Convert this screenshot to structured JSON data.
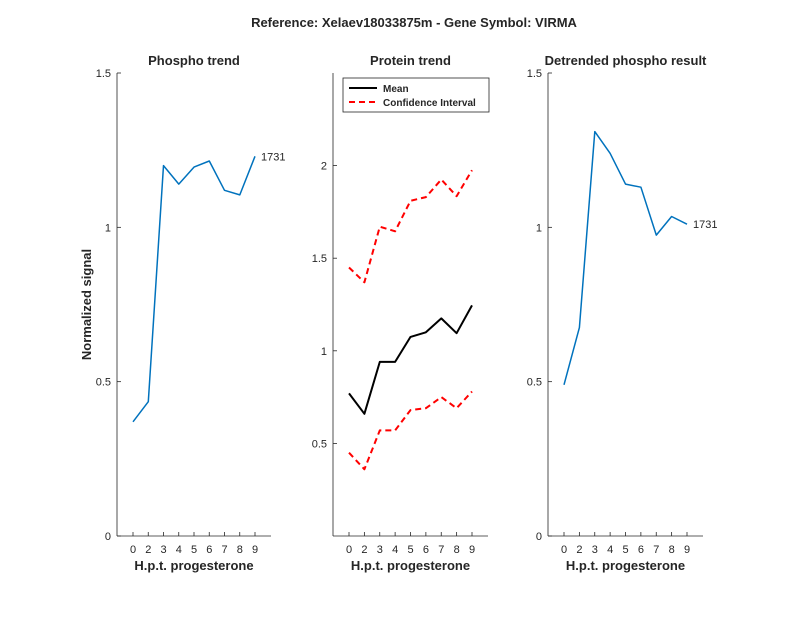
{
  "figure_title": "Reference:  Xelaev18033875m - Gene Symbol:  VIRMA",
  "colors": {
    "phospho": "#0072BD",
    "mean": "#000000",
    "ci": "#FF0000",
    "axis": "#262626"
  },
  "chart_data": [
    {
      "type": "line",
      "title": "Phospho trend",
      "xlabel": "H.p.t. progesterone",
      "ylabel": "Normalized signal",
      "categories": [
        "0",
        "2",
        "3",
        "4",
        "5",
        "6",
        "7",
        "8",
        "9"
      ],
      "ylim": [
        0,
        1.5
      ],
      "yticks": [
        "0",
        "0.5",
        "1",
        "1.5"
      ],
      "series": [
        {
          "values": [
            0.37,
            0.435,
            1.2,
            1.14,
            1.195,
            1.215,
            1.12,
            1.105,
            1.23
          ]
        }
      ],
      "end_label": "1731"
    },
    {
      "type": "line",
      "title": "Protein trend",
      "xlabel": "H.p.t. progesterone",
      "categories": [
        "0",
        "2",
        "3",
        "4",
        "5",
        "6",
        "7",
        "8",
        "9"
      ],
      "ylim": [
        0,
        2.5
      ],
      "yticks": [
        "0.5",
        "1",
        "1.5",
        "2"
      ],
      "legend": [
        "Mean",
        "Confidence Interval"
      ],
      "series": [
        {
          "name": "Mean",
          "values": [
            0.77,
            0.66,
            0.94,
            0.94,
            1.075,
            1.1,
            1.175,
            1.095,
            1.245
          ]
        },
        {
          "name": "Confidence Interval",
          "values": [
            1.45,
            1.37,
            1.67,
            1.645,
            1.81,
            1.83,
            1.925,
            1.835,
            1.975
          ]
        },
        {
          "name": "Confidence Interval",
          "values": [
            0.45,
            0.36,
            0.57,
            0.57,
            0.68,
            0.69,
            0.75,
            0.69,
            0.78
          ]
        }
      ]
    },
    {
      "type": "line",
      "title": "Detrended phospho result",
      "xlabel": "H.p.t. progesterone",
      "categories": [
        "0",
        "2",
        "3",
        "4",
        "5",
        "6",
        "7",
        "8",
        "9"
      ],
      "ylim": [
        0,
        1.5
      ],
      "yticks": [
        "0",
        "0.5",
        "1",
        "1.5"
      ],
      "series": [
        {
          "values": [
            0.49,
            0.675,
            1.31,
            1.24,
            1.14,
            1.13,
            0.975,
            1.035,
            1.01
          ]
        }
      ],
      "end_label": "1731"
    }
  ]
}
